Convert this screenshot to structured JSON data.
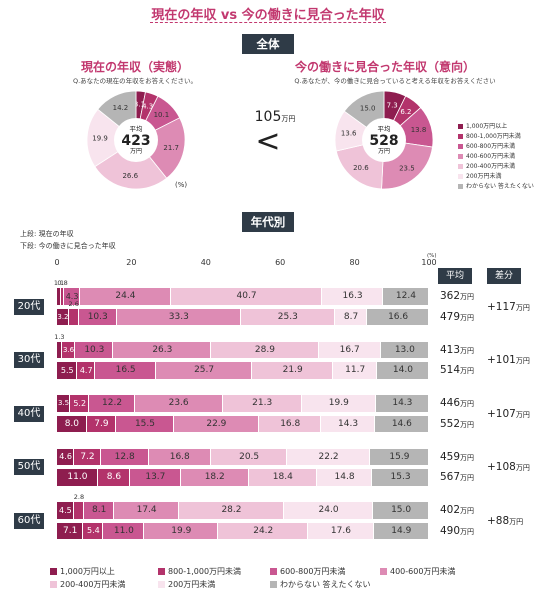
{
  "title": "現在の年収 vs 今の働きに見合った年収",
  "section_overall": "全体",
  "section_age": "年代別",
  "compare_value": "105",
  "compare_unit": "万円",
  "compare_symbol": "<",
  "pies": [
    {
      "title": "現在の年収（実態）",
      "question": "Q.あなたの現在の年収をお答えください。",
      "center_label": "平均",
      "center_value": "423",
      "center_unit": "万円",
      "percent_label": "(%)"
    },
    {
      "title": "今の働きに見合った年収（意向）",
      "question": "Q.あなたが、今の働きに見合っていると考える年収をお答えください",
      "center_label": "平均",
      "center_value": "528",
      "center_unit": "万円",
      "percent_label": ""
    }
  ],
  "row_notes": {
    "upper": "上段: 現在の年収",
    "lower": "下段: 今の働きに見合った年収"
  },
  "axis": {
    "ticks": [
      "0",
      "20",
      "40",
      "60",
      "80",
      "100"
    ],
    "unit": "(%)"
  },
  "headers": {
    "avg": "平均",
    "diff": "差分"
  },
  "unit_man": "万円",
  "categories": [
    "1,000万円以上",
    "800-1,000万円未満",
    "600-800万円未満",
    "400-600万円未満",
    "200-400万円未満",
    "200万円未満",
    "わからない  答えたくない"
  ],
  "colors": [
    "#8e1d4f",
    "#b3336b",
    "#c95791",
    "#dd8bb4",
    "#efc3d8",
    "#f8e4ee",
    "#b5b5b5"
  ],
  "chart_data": [
    {
      "type": "pie",
      "title": "現在の年収（実態）",
      "categories": [
        "1,000万円以上",
        "800-1,000万円未満",
        "600-800万円未満",
        "400-600万円未満",
        "200-400万円未満",
        "200万円未満",
        "わからない  答えたくない"
      ],
      "values": [
        3.1,
        4.3,
        10.1,
        21.7,
        26.6,
        19.9,
        14.2
      ],
      "labels": [
        "3.1",
        "4.3",
        "10.1",
        "21.7",
        "26.6",
        "19.9",
        "14.2"
      ],
      "average": 423
    },
    {
      "type": "pie",
      "title": "今の働きに見合った年収（意向）",
      "categories": [
        "1,000万円以上",
        "800-1,000万円未満",
        "600-800万円未満",
        "400-600万円未満",
        "200-400万円未満",
        "200万円未満",
        "わからない  答えたくない"
      ],
      "values": [
        7.3,
        6.2,
        13.8,
        23.5,
        20.6,
        13.6,
        15.0
      ],
      "labels": [
        "7.3",
        "6.2",
        "13.8",
        "23.5",
        "20.6",
        "13.6",
        "15.0"
      ],
      "average": 528
    },
    {
      "type": "bar",
      "title": "年代別",
      "xlim": [
        0,
        100
      ],
      "categories": [
        "1,000万円以上",
        "800-1,000万円未満",
        "600-800万円未満",
        "400-600万円未満",
        "200-400万円未満",
        "200万円未満",
        "わからない  答えたくない"
      ],
      "groups": [
        {
          "age": "20代",
          "diff": "+117",
          "rows": [
            {
              "values": [
                1.1,
                0.8,
                4.3,
                24.4,
                40.7,
                16.3,
                12.4
              ],
              "labels": [
                "1.1",
                "0.8",
                "4.3",
                "24.4",
                "40.7",
                "16.3",
                "12.4"
              ],
              "avg": "362"
            },
            {
              "values": [
                3.2,
                2.6,
                10.3,
                33.3,
                25.3,
                8.7,
                16.6
              ],
              "labels": [
                "3.2",
                "2.6",
                "10.3",
                "33.3",
                "25.3",
                "8.7",
                "16.6"
              ],
              "avg": "479"
            }
          ]
        },
        {
          "age": "30代",
          "diff": "+101",
          "rows": [
            {
              "values": [
                1.3,
                3.6,
                10.3,
                26.3,
                28.9,
                16.7,
                13.0
              ],
              "labels": [
                "1.3",
                "3.6",
                "10.3",
                "26.3",
                "28.9",
                "16.7",
                "13.0"
              ],
              "avg": "413"
            },
            {
              "values": [
                5.5,
                4.7,
                16.5,
                25.7,
                21.9,
                11.7,
                14.0
              ],
              "labels": [
                "5.5",
                "4.7",
                "16.5",
                "25.7",
                "21.9",
                "11.7",
                "14.0"
              ],
              "avg": "514"
            }
          ]
        },
        {
          "age": "40代",
          "diff": "+107",
          "rows": [
            {
              "values": [
                3.5,
                5.2,
                12.2,
                23.6,
                21.3,
                19.9,
                14.3
              ],
              "labels": [
                "3.5",
                "5.2",
                "12.2",
                "23.6",
                "21.3",
                "19.9",
                "14.3"
              ],
              "avg": "446"
            },
            {
              "values": [
                8.0,
                7.9,
                15.5,
                22.9,
                16.8,
                14.3,
                14.6
              ],
              "labels": [
                "8.0",
                "7.9",
                "15.5",
                "22.9",
                "16.8",
                "14.3",
                "14.6"
              ],
              "avg": "552"
            }
          ]
        },
        {
          "age": "50代",
          "diff": "+108",
          "rows": [
            {
              "values": [
                4.6,
                7.2,
                12.8,
                16.8,
                20.5,
                22.2,
                15.9
              ],
              "labels": [
                "4.6",
                "7.2",
                "12.8",
                "16.8",
                "20.5",
                "22.2",
                "15.9"
              ],
              "avg": "459"
            },
            {
              "values": [
                11.0,
                8.6,
                13.7,
                18.2,
                18.4,
                14.8,
                15.3
              ],
              "labels": [
                "11.0",
                "8.6",
                "13.7",
                "18.2",
                "18.4",
                "14.8",
                "15.3"
              ],
              "avg": "567"
            }
          ]
        },
        {
          "age": "60代",
          "diff": "+88",
          "rows": [
            {
              "values": [
                4.5,
                2.8,
                8.1,
                17.4,
                28.2,
                24.0,
                15.0
              ],
              "labels": [
                "4.5",
                "2.8",
                "8.1",
                "17.4",
                "28.2",
                "24.0",
                "15.0"
              ],
              "avg": "402"
            },
            {
              "values": [
                7.1,
                5.4,
                11.0,
                19.9,
                24.2,
                17.6,
                14.9
              ],
              "labels": [
                "7.1",
                "5.4",
                "11.0",
                "19.9",
                "24.2",
                "17.6",
                "14.9"
              ],
              "avg": "490"
            }
          ]
        }
      ]
    }
  ]
}
